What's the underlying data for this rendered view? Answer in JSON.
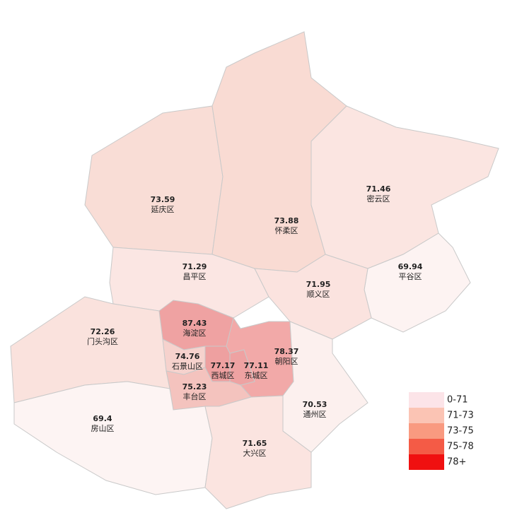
{
  "map": {
    "districts": [
      {
        "name": "延庆区",
        "value": 73.59,
        "color": "#f9ddd6"
      },
      {
        "name": "怀柔区",
        "value": 73.88,
        "color": "#f9dbd3"
      },
      {
        "name": "密云区",
        "value": 71.46,
        "color": "#fbe5e1"
      },
      {
        "name": "平谷区",
        "value": 69.94,
        "color": "#fdf3f2"
      },
      {
        "name": "昌平区",
        "value": 71.29,
        "color": "#fbe6e3"
      },
      {
        "name": "顺义区",
        "value": 71.95,
        "color": "#fbe3df"
      },
      {
        "name": "海淀区",
        "value": 87.43,
        "color": "#efa2a2"
      },
      {
        "name": "朝阳区",
        "value": 78.37,
        "color": "#f2a9a8"
      },
      {
        "name": "西城区",
        "value": 77.17,
        "color": "#eea0a0"
      },
      {
        "name": "东城区",
        "value": 77.11,
        "color": "#eea2a2"
      },
      {
        "name": "石景山区",
        "value": 74.76,
        "color": "#f6d2cd"
      },
      {
        "name": "丰台区",
        "value": 75.23,
        "color": "#f4c3be"
      },
      {
        "name": "门头沟区",
        "value": 72.26,
        "color": "#fae2dd"
      },
      {
        "name": "房山区",
        "value": 69.4,
        "color": "#fdf4f3"
      },
      {
        "name": "大兴区",
        "value": 71.65,
        "color": "#fbe4e0"
      },
      {
        "name": "通州区",
        "value": 70.53,
        "color": "#fcf0ee"
      }
    ]
  },
  "legend": {
    "items": [
      {
        "label": "0-71",
        "color": "#fce4e8"
      },
      {
        "label": "71-73",
        "color": "#fbc4b4"
      },
      {
        "label": "73-75",
        "color": "#f99a80"
      },
      {
        "label": "75-78",
        "color": "#f45b46"
      },
      {
        "label": "78+",
        "color": "#f01010"
      }
    ]
  }
}
